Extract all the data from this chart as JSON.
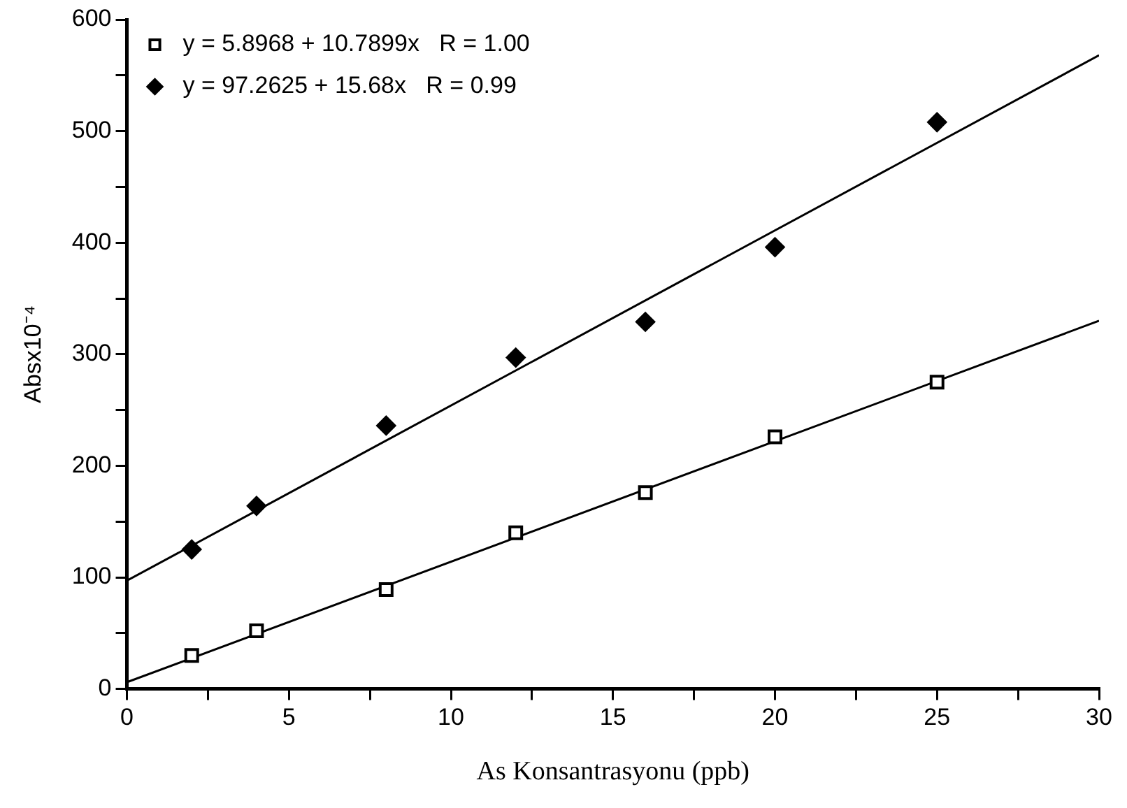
{
  "chart_data": {
    "type": "scatter",
    "xlabel": "As Konsantrasyonu (ppb)",
    "ylabel": "Absx10⁻⁴",
    "xlim": [
      0,
      30
    ],
    "xticks": [
      0,
      {
        "value": 2.5,
        "label": null
      },
      5,
      {
        "value": 7.5,
        "label": null
      },
      10,
      {
        "value": 12.5,
        "label": null
      },
      15,
      {
        "value": 17.5,
        "label": null
      },
      20,
      {
        "value": 22.5,
        "label": null
      },
      25,
      {
        "value": 27.5,
        "label": null
      },
      30
    ],
    "ylim": [
      0,
      600
    ],
    "yticks": [
      0,
      {
        "value": 50,
        "label": null
      },
      100,
      {
        "value": 150,
        "label": null
      },
      200,
      {
        "value": 250,
        "label": null
      },
      300,
      {
        "value": 350,
        "label": null
      },
      400,
      {
        "value": 450,
        "label": null
      },
      500,
      {
        "value": 550,
        "label": null
      },
      600
    ],
    "grid": false,
    "legend": "top left",
    "series": [
      {
        "name": "y = 5.8968 + 10.7899x   R = 1.00",
        "color": "#000000",
        "marker": "square",
        "x": [
          2,
          4,
          8,
          12,
          16,
          20,
          25
        ],
        "values": [
          30,
          52,
          89,
          140,
          176,
          226,
          275
        ]
      },
      {
        "name": "y = 97.2625 + 15.68x   R = 0.99",
        "color": "#000000",
        "marker": "diamond",
        "x": [
          2,
          4,
          8,
          12,
          16,
          20,
          25
        ],
        "values": [
          125,
          164,
          236,
          297,
          329,
          396,
          508
        ]
      },
      {
        "type": "line",
        "color": "#000000",
        "marker": "none",
        "x": [
          0,
          30
        ],
        "values": [
          6,
          330
        ]
      },
      {
        "type": "line",
        "color": "#000000",
        "marker": "none",
        "x": [
          0,
          30
        ],
        "values": [
          97,
          568
        ]
      }
    ]
  }
}
